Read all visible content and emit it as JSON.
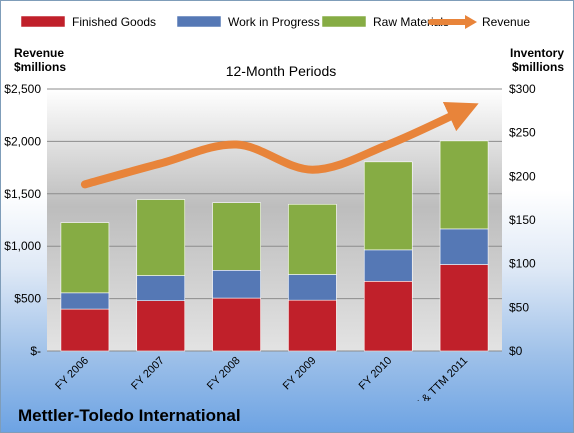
{
  "chart_data": {
    "type": "bar",
    "title": "12-Month Periods",
    "company": "Mettler-Toledo International",
    "left_axis_label": [
      "Revenue",
      "$millions"
    ],
    "right_axis_label": [
      "Inventory",
      "$millions"
    ],
    "categories": [
      "FY 2006",
      "FY 2007",
      "FY 2008",
      "FY 2009",
      "FY 2010",
      "FY & TTM 2011"
    ],
    "left_ylim": [
      0,
      2500
    ],
    "left_ticks": [
      "$-",
      "$500",
      "$1,000",
      "$1,500",
      "$2,000",
      "$2,500"
    ],
    "right_ylim": [
      0,
      300
    ],
    "right_ticks": [
      "$0",
      "$50",
      "$100",
      "$150",
      "$200",
      "$250",
      "$300"
    ],
    "stacked": true,
    "series": [
      {
        "name": "Finished Goods",
        "type": "bar",
        "axis": "left",
        "color": "#c0202a",
        "values": [
          400,
          480,
          505,
          485,
          665,
          825
        ]
      },
      {
        "name": "Work in Progress",
        "type": "bar",
        "axis": "left",
        "color": "#5578b5",
        "values": [
          155,
          240,
          265,
          245,
          300,
          340
        ]
      },
      {
        "name": "Raw Materials",
        "type": "bar",
        "axis": "left",
        "color": "#86ac44",
        "values": [
          670,
          725,
          645,
          670,
          840,
          840
        ]
      },
      {
        "name": "Revenue",
        "type": "line",
        "axis": "left",
        "color": "#e8843a",
        "values": [
          1590,
          1790,
          1970,
          1730,
          1970,
          2300
        ]
      }
    ],
    "grid": true,
    "legend_position": "top"
  }
}
